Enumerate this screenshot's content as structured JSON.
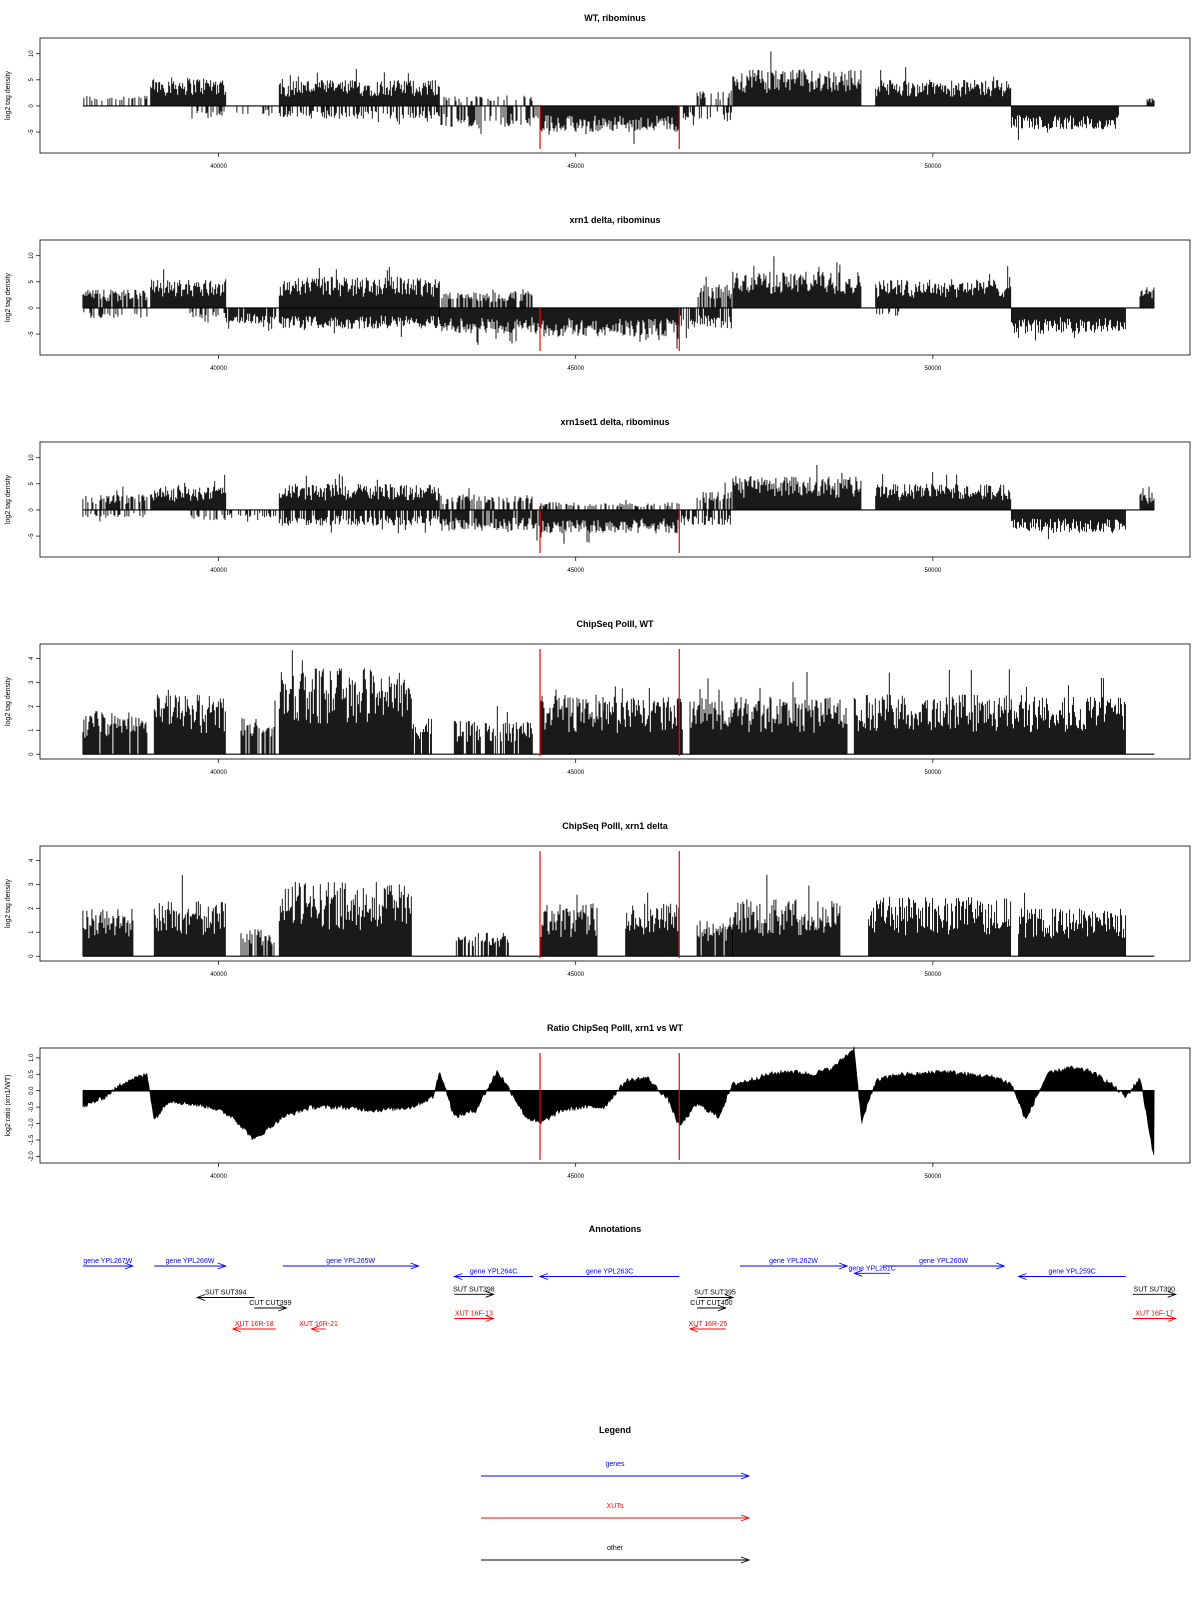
{
  "figure": {
    "panels_label": "Genome browser tracks",
    "colors": {
      "signal": "#000000",
      "marker": "#ff0000",
      "genes": "#0000ff",
      "xuts": "#ff0000",
      "other": "#000000"
    },
    "region_markers_x": [
      44500,
      46450
    ]
  },
  "chart_data": [
    {
      "type": "bar",
      "title": "WT, ribominus",
      "ylabel": "log2 tag density",
      "ylim": [
        -9,
        13
      ],
      "yticks": [
        "-5",
        "0",
        "5",
        "10"
      ],
      "yticks_values": [
        -5,
        0,
        5,
        10
      ],
      "xlim": [
        37500,
        53600
      ],
      "xticks": [
        "40000",
        "45000",
        "50000"
      ],
      "xticks_values": [
        40000,
        45000,
        50000
      ],
      "markers_x": [
        44500,
        46450
      ],
      "segments": [
        {
          "start": 38100,
          "end": 39000,
          "sign": 1,
          "amp": 2,
          "density": 0.35
        },
        {
          "start": 39050,
          "end": 40100,
          "sign": 1,
          "amp": 5.5,
          "density": 1
        },
        {
          "start": 39600,
          "end": 40100,
          "sign": -1,
          "amp": 2.5,
          "density": 0.4
        },
        {
          "start": 40200,
          "end": 40800,
          "sign": -1,
          "amp": 2,
          "density": 0.3
        },
        {
          "start": 40850,
          "end": 43100,
          "sign": 1,
          "amp": 5,
          "density": 1
        },
        {
          "start": 40850,
          "end": 43100,
          "sign": -1,
          "amp": 2.5,
          "density": 0.5
        },
        {
          "start": 43100,
          "end": 44500,
          "sign": -1,
          "amp": 4,
          "density": 0.6
        },
        {
          "start": 43100,
          "end": 44400,
          "sign": 1,
          "amp": 2,
          "density": 0.3
        },
        {
          "start": 44500,
          "end": 46450,
          "sign": -1,
          "amp": 5,
          "density": 1
        },
        {
          "start": 46450,
          "end": 47200,
          "sign": -1,
          "amp": 3,
          "density": 0.5
        },
        {
          "start": 46700,
          "end": 47200,
          "sign": 1,
          "amp": 3,
          "density": 0.4
        },
        {
          "start": 47200,
          "end": 49000,
          "sign": 1,
          "amp": 7,
          "density": 1
        },
        {
          "start": 49200,
          "end": 51100,
          "sign": 1,
          "amp": 5,
          "density": 1
        },
        {
          "start": 51100,
          "end": 52600,
          "sign": -1,
          "amp": 4.5,
          "density": 1
        },
        {
          "start": 53000,
          "end": 53100,
          "sign": 1,
          "amp": 1.5,
          "density": 1
        }
      ]
    },
    {
      "type": "bar",
      "title": "xrn1 delta, ribominus",
      "ylabel": "log2 tag density",
      "ylim": [
        -9,
        13
      ],
      "yticks": [
        "-5",
        "0",
        "5",
        "10"
      ],
      "yticks_values": [
        -5,
        0,
        5,
        10
      ],
      "xlim": [
        37500,
        53600
      ],
      "xticks": [
        "40000",
        "45000",
        "50000"
      ],
      "xticks_values": [
        40000,
        45000,
        50000
      ],
      "markers_x": [
        44500,
        46450
      ],
      "segments": [
        {
          "start": 38100,
          "end": 39000,
          "sign": 1,
          "amp": 3.5,
          "density": 0.9
        },
        {
          "start": 38100,
          "end": 39000,
          "sign": -1,
          "amp": 2,
          "density": 0.4
        },
        {
          "start": 39050,
          "end": 40100,
          "sign": 1,
          "amp": 5.5,
          "density": 1
        },
        {
          "start": 39600,
          "end": 40100,
          "sign": -1,
          "amp": 2,
          "density": 0.4
        },
        {
          "start": 40100,
          "end": 40800,
          "sign": -1,
          "amp": 3,
          "density": 0.9
        },
        {
          "start": 40850,
          "end": 43100,
          "sign": 1,
          "amp": 6,
          "density": 1
        },
        {
          "start": 40850,
          "end": 43100,
          "sign": -1,
          "amp": 4,
          "density": 1
        },
        {
          "start": 43100,
          "end": 44500,
          "sign": -1,
          "amp": 5,
          "density": 1
        },
        {
          "start": 43100,
          "end": 44400,
          "sign": 1,
          "amp": 3,
          "density": 0.6
        },
        {
          "start": 44500,
          "end": 46450,
          "sign": -1,
          "amp": 5.5,
          "density": 1
        },
        {
          "start": 46450,
          "end": 47200,
          "sign": -1,
          "amp": 4,
          "density": 0.8
        },
        {
          "start": 46700,
          "end": 47200,
          "sign": 1,
          "amp": 4.5,
          "density": 0.8
        },
        {
          "start": 47200,
          "end": 49000,
          "sign": 1,
          "amp": 7,
          "density": 1
        },
        {
          "start": 49200,
          "end": 51100,
          "sign": 1,
          "amp": 5.5,
          "density": 1
        },
        {
          "start": 49200,
          "end": 49600,
          "sign": -1,
          "amp": 1.5,
          "density": 0.3
        },
        {
          "start": 51100,
          "end": 52700,
          "sign": -1,
          "amp": 5,
          "density": 1
        },
        {
          "start": 52900,
          "end": 53100,
          "sign": 1,
          "amp": 4,
          "density": 1
        }
      ]
    },
    {
      "type": "bar",
      "title": "xrn1set1 delta, ribominus",
      "ylabel": "log2 tag density",
      "ylim": [
        -9,
        13
      ],
      "yticks": [
        "-5",
        "0",
        "5",
        "10"
      ],
      "yticks_values": [
        -5,
        0,
        5,
        10
      ],
      "xlim": [
        37500,
        53600
      ],
      "xticks": [
        "40000",
        "45000",
        "50000"
      ],
      "xticks_values": [
        40000,
        45000,
        50000
      ],
      "markers_x": [
        44500,
        46450
      ],
      "segments": [
        {
          "start": 38100,
          "end": 39000,
          "sign": 1,
          "amp": 3,
          "density": 0.7
        },
        {
          "start": 38100,
          "end": 39000,
          "sign": -1,
          "amp": 1.5,
          "density": 0.4
        },
        {
          "start": 39050,
          "end": 40100,
          "sign": 1,
          "amp": 4.5,
          "density": 1
        },
        {
          "start": 39600,
          "end": 40100,
          "sign": -1,
          "amp": 2,
          "density": 0.4
        },
        {
          "start": 40100,
          "end": 40800,
          "sign": -1,
          "amp": 1.5,
          "density": 0.5
        },
        {
          "start": 40850,
          "end": 43100,
          "sign": 1,
          "amp": 5,
          "density": 1
        },
        {
          "start": 40850,
          "end": 43100,
          "sign": -1,
          "amp": 3,
          "density": 0.8
        },
        {
          "start": 43100,
          "end": 44400,
          "sign": 1,
          "amp": 3,
          "density": 0.6
        },
        {
          "start": 43100,
          "end": 44500,
          "sign": -1,
          "amp": 4,
          "density": 0.9
        },
        {
          "start": 44500,
          "end": 46450,
          "sign": -1,
          "amp": 4.5,
          "density": 1
        },
        {
          "start": 44500,
          "end": 46450,
          "sign": 1,
          "amp": 1.5,
          "density": 0.4
        },
        {
          "start": 46450,
          "end": 47200,
          "sign": -1,
          "amp": 3,
          "density": 0.6
        },
        {
          "start": 46700,
          "end": 47200,
          "sign": 1,
          "amp": 3.5,
          "density": 0.7
        },
        {
          "start": 47200,
          "end": 49000,
          "sign": 1,
          "amp": 6.5,
          "density": 1
        },
        {
          "start": 49200,
          "end": 51100,
          "sign": 1,
          "amp": 5,
          "density": 1
        },
        {
          "start": 51100,
          "end": 52700,
          "sign": -1,
          "amp": 4.5,
          "density": 1
        },
        {
          "start": 52900,
          "end": 53100,
          "sign": 1,
          "amp": 3.5,
          "density": 1
        }
      ]
    },
    {
      "type": "bar",
      "title": "ChipSeq PolII, WT",
      "ylabel": "log2 tag density",
      "ylim": [
        -0.2,
        4.6
      ],
      "yticks": [
        "0",
        "1",
        "2",
        "3",
        "4"
      ],
      "yticks_values": [
        0,
        1,
        2,
        3,
        4
      ],
      "xlim": [
        37500,
        53600
      ],
      "xticks": [
        "40000",
        "45000",
        "50000"
      ],
      "xticks_values": [
        40000,
        45000,
        50000
      ],
      "markers_x": [
        44500,
        46450
      ],
      "segments": [
        {
          "start": 38100,
          "end": 39000,
          "sign": 1,
          "amp": 1.8,
          "density": 0.9
        },
        {
          "start": 39100,
          "end": 40100,
          "sign": 1,
          "amp": 2.5,
          "density": 1
        },
        {
          "start": 40300,
          "end": 40800,
          "sign": 1,
          "amp": 1.5,
          "density": 0.8
        },
        {
          "start": 40850,
          "end": 42700,
          "sign": 1,
          "amp": 3.6,
          "density": 1
        },
        {
          "start": 42700,
          "end": 43000,
          "sign": 1,
          "amp": 1.5,
          "density": 0.7
        },
        {
          "start": 43300,
          "end": 44400,
          "sign": 1,
          "amp": 1.4,
          "density": 0.8
        },
        {
          "start": 44500,
          "end": 45400,
          "sign": 1,
          "amp": 2.5,
          "density": 1
        },
        {
          "start": 45400,
          "end": 46500,
          "sign": 1,
          "amp": 2.4,
          "density": 1
        },
        {
          "start": 46600,
          "end": 48800,
          "sign": 1,
          "amp": 2.4,
          "density": 1
        },
        {
          "start": 48900,
          "end": 51100,
          "sign": 1,
          "amp": 2.5,
          "density": 1
        },
        {
          "start": 51100,
          "end": 52700,
          "sign": 1,
          "amp": 2.4,
          "density": 1
        }
      ]
    },
    {
      "type": "bar",
      "title": "ChipSeq PolII, xrn1 delta",
      "ylabel": "log2 tag density",
      "ylim": [
        -0.2,
        4.6
      ],
      "yticks": [
        "0",
        "1",
        "2",
        "3",
        "4"
      ],
      "yticks_values": [
        0,
        1,
        2,
        3,
        4
      ],
      "xlim": [
        37500,
        53600
      ],
      "xticks": [
        "40000",
        "45000",
        "50000"
      ],
      "xticks_values": [
        40000,
        45000,
        50000
      ],
      "markers_x": [
        44500,
        46450
      ],
      "segments": [
        {
          "start": 38100,
          "end": 38800,
          "sign": 1,
          "amp": 2.0,
          "density": 1
        },
        {
          "start": 39100,
          "end": 40100,
          "sign": 1,
          "amp": 2.3,
          "density": 1
        },
        {
          "start": 40300,
          "end": 40800,
          "sign": 1,
          "amp": 1.2,
          "density": 0.7
        },
        {
          "start": 40850,
          "end": 42700,
          "sign": 1,
          "amp": 3.1,
          "density": 1
        },
        {
          "start": 43300,
          "end": 44100,
          "sign": 1,
          "amp": 1.0,
          "density": 0.6
        },
        {
          "start": 44500,
          "end": 45300,
          "sign": 1,
          "amp": 2.2,
          "density": 1
        },
        {
          "start": 45700,
          "end": 46450,
          "sign": 1,
          "amp": 2.2,
          "density": 1
        },
        {
          "start": 46700,
          "end": 47200,
          "sign": 1,
          "amp": 1.5,
          "density": 0.9
        },
        {
          "start": 47200,
          "end": 48700,
          "sign": 1,
          "amp": 2.4,
          "density": 1
        },
        {
          "start": 49100,
          "end": 51100,
          "sign": 1,
          "amp": 2.5,
          "density": 1
        },
        {
          "start": 51200,
          "end": 52700,
          "sign": 1,
          "amp": 2.0,
          "density": 1
        }
      ]
    },
    {
      "type": "area",
      "title": "Ratio ChipSeq PolII, xrn1 vs WT",
      "ylabel": "log2 ratio (xrn1/WT)",
      "ylim": [
        -2.2,
        1.3
      ],
      "yticks": [
        "-2.0",
        "-1.5",
        "-1.0",
        "-0.5",
        "0.0",
        "0.5",
        "1.0"
      ],
      "yticks_values": [
        -2.0,
        -1.5,
        -1.0,
        -0.5,
        0.0,
        0.5,
        1.0
      ],
      "xlim": [
        37500,
        53600
      ],
      "xticks": [
        "40000",
        "45000",
        "50000"
      ],
      "xticks_values": [
        40000,
        45000,
        50000
      ],
      "markers_x": [
        44500,
        46450
      ],
      "x": [
        38100,
        38400,
        38700,
        39000,
        39100,
        39300,
        39600,
        39900,
        40200,
        40500,
        40900,
        41300,
        41700,
        42200,
        42700,
        43000,
        43100,
        43300,
        43600,
        43900,
        44000,
        44300,
        44500,
        44800,
        45100,
        45400,
        45700,
        46000,
        46300,
        46450,
        46700,
        47000,
        47200,
        47400,
        47700,
        48000,
        48300,
        48600,
        48900,
        49000,
        49200,
        49500,
        49800,
        50100,
        50500,
        50900,
        51100,
        51300,
        51600,
        51900,
        52200,
        52500,
        52700,
        52900,
        53100
      ],
      "y": [
        -0.5,
        -0.2,
        0.3,
        0.5,
        -0.9,
        -0.3,
        -0.4,
        -0.5,
        -0.8,
        -1.5,
        -0.8,
        -0.5,
        -0.5,
        -0.6,
        -0.5,
        -0.2,
        0.6,
        -0.8,
        -0.6,
        0.6,
        0.3,
        -0.8,
        -1.0,
        -0.6,
        -0.5,
        -0.5,
        0.3,
        0.4,
        -0.3,
        -1.1,
        -0.4,
        -0.8,
        0.2,
        0.3,
        0.5,
        0.6,
        0.5,
        0.7,
        1.3,
        -1.0,
        0.3,
        0.5,
        0.5,
        0.6,
        0.5,
        0.4,
        0.2,
        -0.9,
        0.5,
        0.7,
        0.6,
        0.2,
        -0.2,
        0.4,
        -2.1
      ]
    }
  ],
  "annotations": {
    "title": "Annotations",
    "xlim": [
      37500,
      53600
    ],
    "features": [
      {
        "label": "gene YPL267W",
        "class": "genes",
        "start": 38100,
        "end": 38800,
        "dir": "right",
        "row": 0
      },
      {
        "label": "gene YPL266W",
        "class": "genes",
        "start": 39100,
        "end": 40100,
        "dir": "right",
        "row": 0
      },
      {
        "label": "gene YPL265W",
        "class": "genes",
        "start": 40900,
        "end": 42800,
        "dir": "right",
        "row": 0
      },
      {
        "label": "gene YPL264C",
        "class": "genes",
        "start": 43300,
        "end": 44400,
        "dir": "left",
        "row": 1
      },
      {
        "label": "gene YPL263C",
        "class": "genes",
        "start": 44500,
        "end": 46450,
        "dir": "left",
        "row": 1
      },
      {
        "label": "gene YPL262W",
        "class": "genes",
        "start": 47300,
        "end": 48800,
        "dir": "right",
        "row": 0
      },
      {
        "label": "gene YPL261C",
        "class": "genes",
        "start": 48900,
        "end": 49400,
        "dir": "left",
        "row": 0.7
      },
      {
        "label": "gene YPL260W",
        "class": "genes",
        "start": 49300,
        "end": 51000,
        "dir": "right",
        "row": 0
      },
      {
        "label": "gene YPL259C",
        "class": "genes",
        "start": 51200,
        "end": 52700,
        "dir": "left",
        "row": 1
      },
      {
        "label": "SUT SUT394",
        "class": "other",
        "start": 39700,
        "end": 40500,
        "dir": "left",
        "row": 3
      },
      {
        "label": "CUT CUT399",
        "class": "other",
        "start": 40500,
        "end": 40950,
        "dir": "right",
        "row": 4
      },
      {
        "label": "SUT SUT398",
        "class": "other",
        "start": 43300,
        "end": 43850,
        "dir": "right",
        "row": 2.7
      },
      {
        "label": "SUT SUT395",
        "class": "other",
        "start": 46700,
        "end": 47200,
        "dir": "right",
        "row": 3
      },
      {
        "label": "CUT CUT400",
        "class": "other",
        "start": 46700,
        "end": 47100,
        "dir": "right",
        "row": 4
      },
      {
        "label": "SUT SUT390",
        "class": "other",
        "start": 52800,
        "end": 53400,
        "dir": "right",
        "row": 2.7
      },
      {
        "label": "XUT 16R-18",
        "class": "xuts",
        "start": 40200,
        "end": 40800,
        "dir": "left",
        "row": 6
      },
      {
        "label": "XUT 16R-21",
        "class": "xuts",
        "start": 41300,
        "end": 41500,
        "dir": "left",
        "row": 6
      },
      {
        "label": "XUT 16F-13",
        "class": "xuts",
        "start": 43300,
        "end": 43850,
        "dir": "right",
        "row": 5
      },
      {
        "label": "XUT 16R-25",
        "class": "xuts",
        "start": 46600,
        "end": 47100,
        "dir": "left",
        "row": 6
      },
      {
        "label": "XUT 16F-17",
        "class": "xuts",
        "start": 52800,
        "end": 53400,
        "dir": "right",
        "row": 5
      }
    ]
  },
  "legend": {
    "title": "Legend",
    "items": [
      {
        "label": "genes",
        "class": "genes"
      },
      {
        "label": "XUTs",
        "class": "xuts"
      },
      {
        "label": "other",
        "class": "other"
      }
    ]
  }
}
